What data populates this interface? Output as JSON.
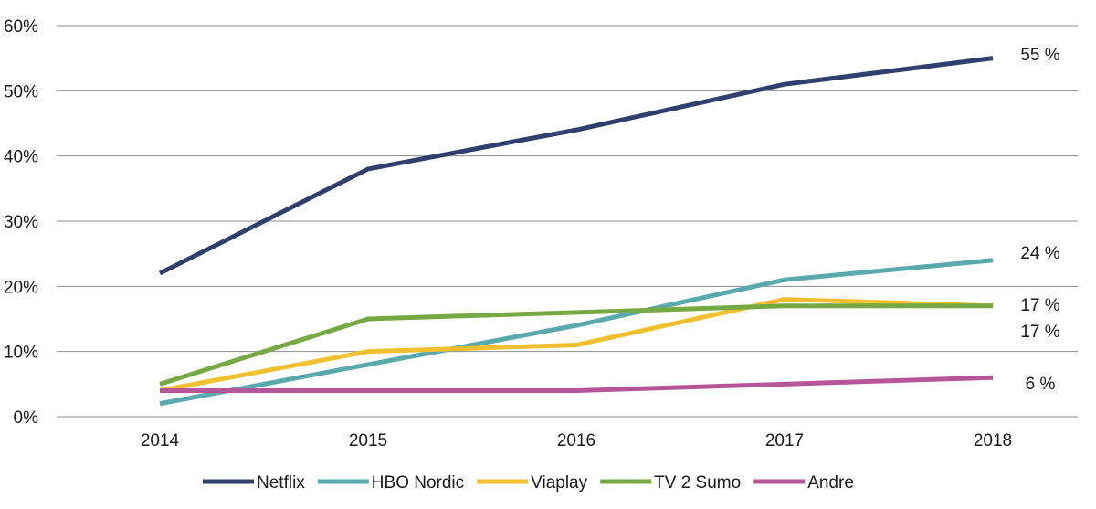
{
  "chart_data": {
    "type": "line",
    "title": "",
    "xlabel": "",
    "ylabel": "",
    "categories": [
      "2014",
      "2015",
      "2016",
      "2017",
      "2018"
    ],
    "y_ticks": [
      "0%",
      "10%",
      "20%",
      "30%",
      "40%",
      "50%",
      "60%"
    ],
    "ylim": [
      0,
      60
    ],
    "grid": "horizontal",
    "legend_position": "bottom",
    "series": [
      {
        "name": "Netflix",
        "color": "#2f3f6f",
        "values": [
          22,
          38,
          44,
          51,
          55
        ],
        "end_label": "55 %"
      },
      {
        "name": "HBO Nordic",
        "color": "#5aa9ae",
        "values": [
          2,
          8,
          14,
          21,
          24
        ],
        "end_label": "24 %"
      },
      {
        "name": "Viaplay",
        "color": "#f0c030",
        "values": [
          4,
          10,
          11,
          18,
          17
        ],
        "end_label": "17 %"
      },
      {
        "name": "TV 2 Sumo",
        "color": "#76a844",
        "values": [
          5,
          15,
          16,
          17,
          17
        ],
        "end_label": "17 %"
      },
      {
        "name": "Andre",
        "color": "#b7559a",
        "values": [
          4,
          4,
          4,
          5,
          6
        ],
        "end_label": "6 %"
      }
    ]
  }
}
